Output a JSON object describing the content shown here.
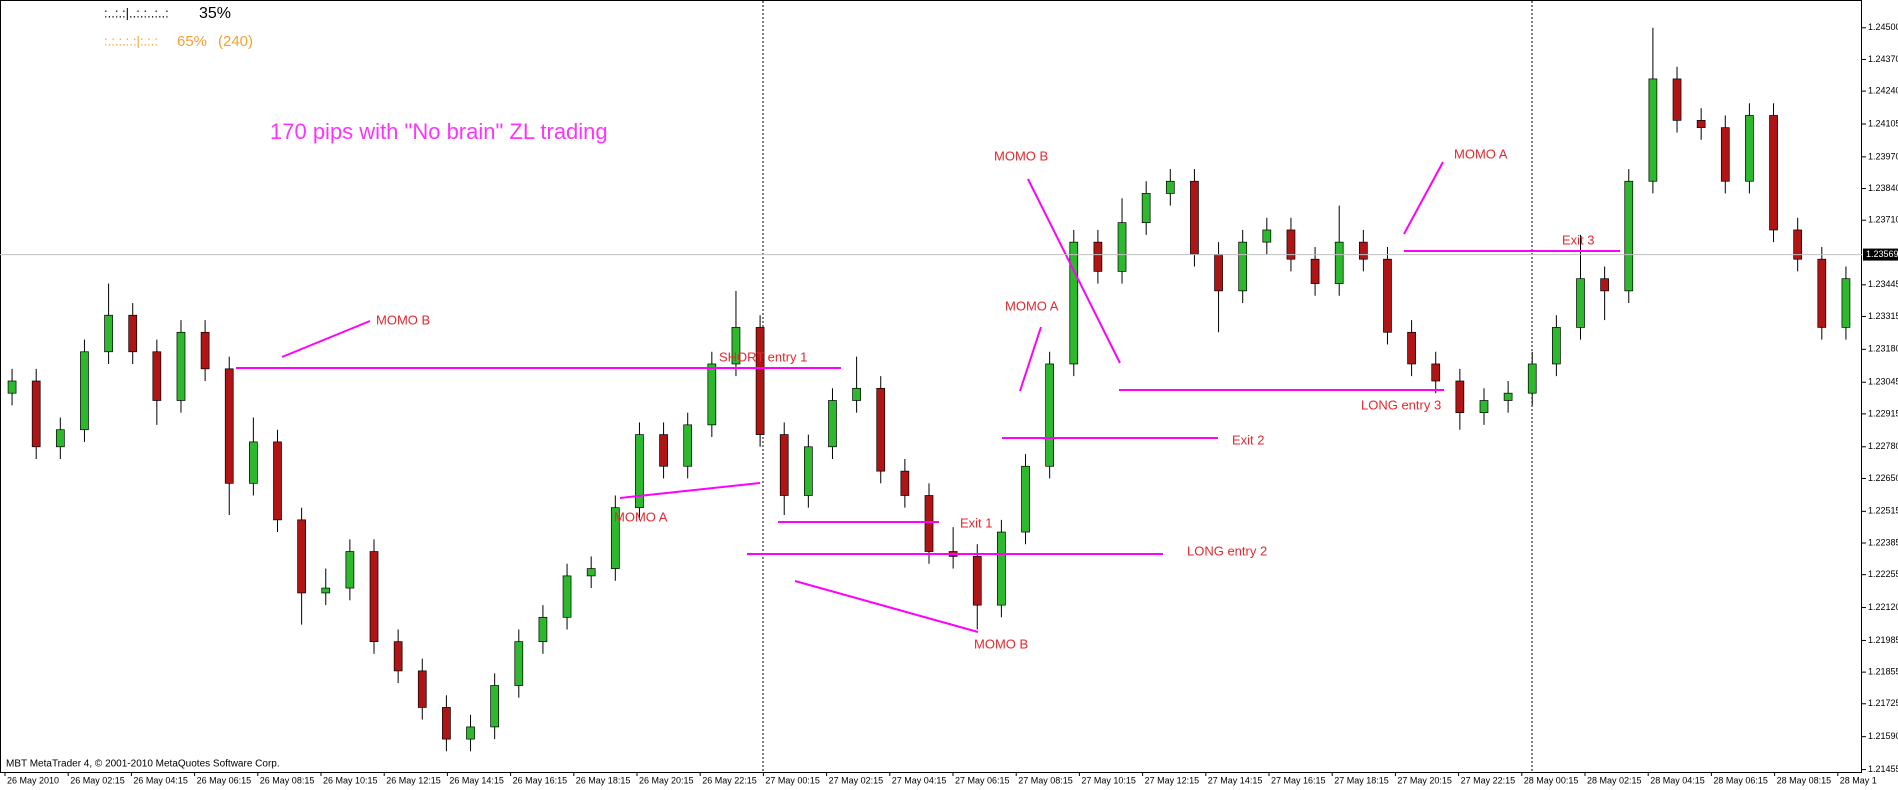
{
  "chart_data": {
    "type": "candlestick",
    "title": "170 pips with \"No brain\" ZL trading",
    "indicator": {
      "row1": {
        "pattern": ":..:.:|..:.:..:..:",
        "value": "35%"
      },
      "row2": {
        "pattern": ":.:.:.:.:|:.:.:",
        "value": "65%",
        "count": "(240)"
      }
    },
    "footer": "MBT MetaTrader 4, © 2001-2010 MetaQuotes Software Corp.",
    "colors": {
      "up": "#2db82d",
      "down": "#b01515",
      "wick": "#000000"
    },
    "ylim": [
      1.21445,
      1.24614
    ],
    "yticks": [
      {
        "value": 1.245,
        "label": "1.24500"
      },
      {
        "value": 1.2437,
        "label": "1.24370"
      },
      {
        "value": 1.2424,
        "label": "1.24240"
      },
      {
        "value": 1.24105,
        "label": "1.24105"
      },
      {
        "value": 1.2397,
        "label": "1.23970"
      },
      {
        "value": 1.2384,
        "label": "1.23840"
      },
      {
        "value": 1.2371,
        "label": "1.23710"
      },
      {
        "value": 1.23445,
        "label": "1.23445"
      },
      {
        "value": 1.23315,
        "label": "1.23315"
      },
      {
        "value": 1.2318,
        "label": "1.23180"
      },
      {
        "value": 1.23045,
        "label": "1.23045"
      },
      {
        "value": 1.22915,
        "label": "1.22915"
      },
      {
        "value": 1.2278,
        "label": "1.22780"
      },
      {
        "value": 1.2265,
        "label": "1.22650"
      },
      {
        "value": 1.22515,
        "label": "1.22515"
      },
      {
        "value": 1.22385,
        "label": "1.22385"
      },
      {
        "value": 1.22255,
        "label": "1.22255"
      },
      {
        "value": 1.2212,
        "label": "1.22120"
      },
      {
        "value": 1.21985,
        "label": "1.21985"
      },
      {
        "value": 1.21855,
        "label": "1.21855"
      },
      {
        "value": 1.21725,
        "label": "1.21725"
      },
      {
        "value": 1.2159,
        "label": "1.21590"
      },
      {
        "value": 1.21455,
        "label": "1.21455"
      }
    ],
    "current_price": 1.23569,
    "xticks": [
      "26 May 2010",
      "26 May 02:15",
      "26 May 04:15",
      "26 May 06:15",
      "26 May 08:15",
      "26 May 10:15",
      "26 May 12:15",
      "26 May 14:15",
      "26 May 16:15",
      "26 May 18:15",
      "26 May 20:15",
      "26 May 22:15",
      "27 May 00:15",
      "27 May 02:15",
      "27 May 04:15",
      "27 May 06:15",
      "27 May 08:15",
      "27 May 10:15",
      "27 May 12:15",
      "27 May 14:15",
      "27 May 16:15",
      "27 May 18:15",
      "27 May 20:15",
      "27 May 22:15",
      "28 May 00:15",
      "28 May 02:15",
      "28 May 04:15",
      "28 May 06:15",
      "28 May 08:15",
      "28 May 1"
    ],
    "open": [
      1.23,
      1.2305,
      1.2278,
      1.2285,
      1.2317,
      1.2332,
      1.2317,
      1.2297,
      1.2325,
      1.231,
      1.2263,
      1.228,
      1.2248,
      1.2218,
      1.222,
      1.2235,
      1.2198,
      1.2186,
      1.2171,
      1.2158,
      1.2163,
      1.218,
      1.2198,
      1.2208,
      1.2225,
      1.2228,
      1.2253,
      1.2283,
      1.227,
      1.2287,
      1.2312,
      1.2327,
      1.2283,
      1.2258,
      1.2278,
      1.2297,
      1.2302,
      1.2268,
      1.2258,
      1.2235,
      1.2233,
      1.2213,
      1.2243,
      1.227,
      1.2312,
      1.2362,
      1.235,
      1.237,
      1.2382,
      1.2387,
      1.2357,
      1.2342,
      1.2362,
      1.2367,
      1.2355,
      1.2345,
      1.2362,
      1.2355,
      1.2325,
      1.2312,
      1.2305,
      1.2292,
      1.2297,
      1.23,
      1.2312,
      1.2327,
      1.2347,
      1.2342,
      1.2387,
      1.2429,
      1.2412,
      1.2409,
      1.2387,
      1.2414,
      1.2367,
      1.2355,
      1.2327
    ],
    "high": [
      1.231,
      1.231,
      1.229,
      1.2322,
      1.2345,
      1.2337,
      1.2322,
      1.233,
      1.233,
      1.2315,
      1.229,
      1.2285,
      1.2253,
      1.2228,
      1.224,
      1.224,
      1.2203,
      1.2191,
      1.2176,
      1.2168,
      1.2185,
      1.2203,
      1.2213,
      1.223,
      1.2233,
      1.2258,
      1.2288,
      1.2288,
      1.2292,
      1.2317,
      1.2342,
      1.2332,
      1.2288,
      1.2283,
      1.2302,
      1.2315,
      1.2307,
      1.2273,
      1.2263,
      1.2245,
      1.2238,
      1.2248,
      1.2275,
      1.2317,
      1.2367,
      1.2367,
      1.238,
      1.2387,
      1.2392,
      1.2392,
      1.2362,
      1.2367,
      1.2372,
      1.2372,
      1.236,
      1.2377,
      1.2367,
      1.236,
      1.233,
      1.2317,
      1.231,
      1.2302,
      1.2305,
      1.2317,
      1.2332,
      1.2365,
      1.2352,
      1.2392,
      1.245,
      1.2434,
      1.2417,
      1.2414,
      1.2419,
      1.2419,
      1.2372,
      1.236,
      1.2352
    ],
    "low": [
      1.2295,
      1.2273,
      1.2273,
      1.228,
      1.2312,
      1.2312,
      1.2287,
      1.2292,
      1.2305,
      1.225,
      1.2258,
      1.2243,
      1.2205,
      1.2213,
      1.2215,
      1.2193,
      1.2181,
      1.2166,
      1.2153,
      1.2153,
      1.2158,
      1.2175,
      1.2193,
      1.2203,
      1.222,
      1.2223,
      1.2248,
      1.2265,
      1.2265,
      1.2282,
      1.2307,
      1.2278,
      1.225,
      1.2253,
      1.2273,
      1.2292,
      1.2263,
      1.2253,
      1.223,
      1.2228,
      1.2203,
      1.2208,
      1.2238,
      1.2265,
      1.2307,
      1.2345,
      1.2345,
      1.2365,
      1.2377,
      1.2352,
      1.2325,
      1.2337,
      1.2357,
      1.235,
      1.234,
      1.234,
      1.235,
      1.232,
      1.2307,
      1.23,
      1.2285,
      1.2287,
      1.2292,
      1.2295,
      1.2307,
      1.2322,
      1.233,
      1.2337,
      1.2382,
      1.2407,
      1.2404,
      1.2382,
      1.2382,
      1.2362,
      1.235,
      1.2322,
      1.2322
    ],
    "close": [
      1.2305,
      1.2278,
      1.2285,
      1.2317,
      1.2332,
      1.2317,
      1.2297,
      1.2325,
      1.231,
      1.2263,
      1.228,
      1.2248,
      1.2218,
      1.222,
      1.2235,
      1.2198,
      1.2186,
      1.2171,
      1.2158,
      1.2163,
      1.218,
      1.2198,
      1.2208,
      1.2225,
      1.2228,
      1.2253,
      1.2283,
      1.227,
      1.2287,
      1.2312,
      1.2327,
      1.2283,
      1.2258,
      1.2278,
      1.2297,
      1.2302,
      1.2268,
      1.2258,
      1.2235,
      1.2233,
      1.2213,
      1.2243,
      1.227,
      1.2312,
      1.2362,
      1.235,
      1.237,
      1.2382,
      1.2387,
      1.2357,
      1.2342,
      1.2362,
      1.2367,
      1.2355,
      1.2345,
      1.2362,
      1.2355,
      1.2325,
      1.2312,
      1.2305,
      1.2292,
      1.2297,
      1.23,
      1.2312,
      1.2327,
      1.2347,
      1.2342,
      1.2387,
      1.2429,
      1.2412,
      1.2409,
      1.2387,
      1.2414,
      1.2367,
      1.2355,
      1.2327,
      1.2347
    ],
    "annotations": [
      "MOMO B",
      "SHORT entry 1",
      "MOMO A",
      "Exit 1",
      "MOMO A",
      "MOMO B",
      "Exit 2",
      "LONG entry 2",
      "MOMO B",
      "LONG entry 3",
      "MOMO A",
      "Exit 3"
    ]
  }
}
